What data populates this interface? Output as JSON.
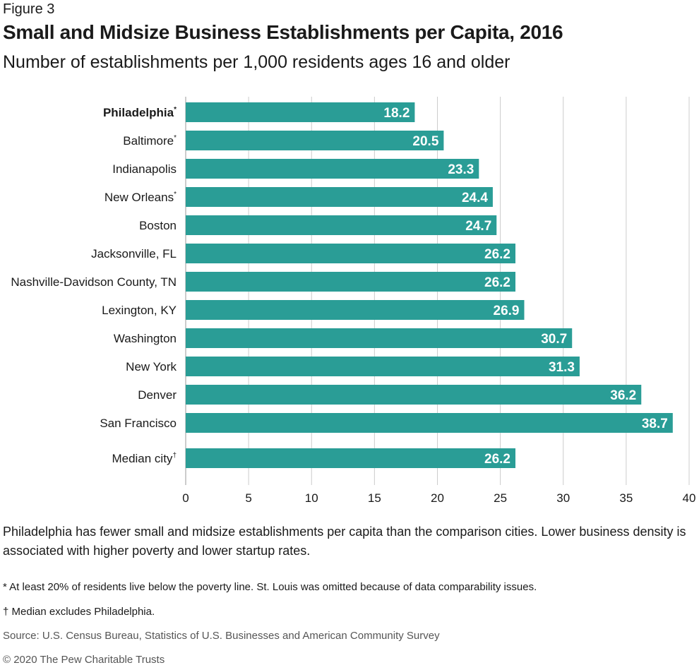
{
  "figure_label": "Figure 3",
  "title": "Small and Midsize Business Establishments per Capita, 2016",
  "subtitle": "Number of establishments per 1,000 residents ages 16 and older",
  "caption": "Philadelphia has fewer small and midsize establishments per capita than the comparison cities. Lower business density is associated with higher poverty and lower startup rates.",
  "footnotes": {
    "asterisk": "* At least 20% of residents live below the poverty line. St. Louis was omitted because of data comparability issues.",
    "dagger": "† Median excludes Philadelphia."
  },
  "source": "Source: U.S. Census Bureau, Statistics of U.S. Businesses and American Community Survey",
  "copyright": "© 2020 The Pew Charitable Trusts",
  "chart_data": {
    "type": "bar",
    "orientation": "horizontal",
    "categories": [
      {
        "name": "Philadelphia",
        "mark": "*",
        "value": 18.2,
        "label": "18.2",
        "bold": true
      },
      {
        "name": "Baltimore",
        "mark": "*",
        "value": 20.5,
        "label": "20.5",
        "bold": false
      },
      {
        "name": "Indianapolis",
        "mark": "",
        "value": 23.3,
        "label": "23.3",
        "bold": false
      },
      {
        "name": "New Orleans",
        "mark": "*",
        "value": 24.4,
        "label": "24.4",
        "bold": false
      },
      {
        "name": "Boston",
        "mark": "",
        "value": 24.7,
        "label": "24.7",
        "bold": false
      },
      {
        "name": "Jacksonville, FL",
        "mark": "",
        "value": 26.2,
        "label": "26.2",
        "bold": false
      },
      {
        "name": "Nashville-Davidson County, TN",
        "mark": "",
        "value": 26.2,
        "label": "26.2",
        "bold": false
      },
      {
        "name": "Lexington, KY",
        "mark": "",
        "value": 26.9,
        "label": "26.9",
        "bold": false
      },
      {
        "name": "Washington",
        "mark": "",
        "value": 30.7,
        "label": "30.7",
        "bold": false
      },
      {
        "name": "New York",
        "mark": "",
        "value": 31.3,
        "label": "31.3",
        "bold": false
      },
      {
        "name": "Denver",
        "mark": "",
        "value": 36.2,
        "label": "36.2",
        "bold": false
      },
      {
        "name": "San Francisco",
        "mark": "",
        "value": 38.7,
        "label": "38.7",
        "bold": false
      },
      {
        "name": "Median city",
        "mark": "†",
        "value": 26.2,
        "label": "26.2",
        "bold": false
      }
    ],
    "xlim": [
      0,
      40
    ],
    "xticks": [
      0,
      5,
      10,
      15,
      20,
      25,
      30,
      35,
      40
    ],
    "grid": true,
    "bar_color": "#2a9d96",
    "grid_color": "#cccccc"
  }
}
